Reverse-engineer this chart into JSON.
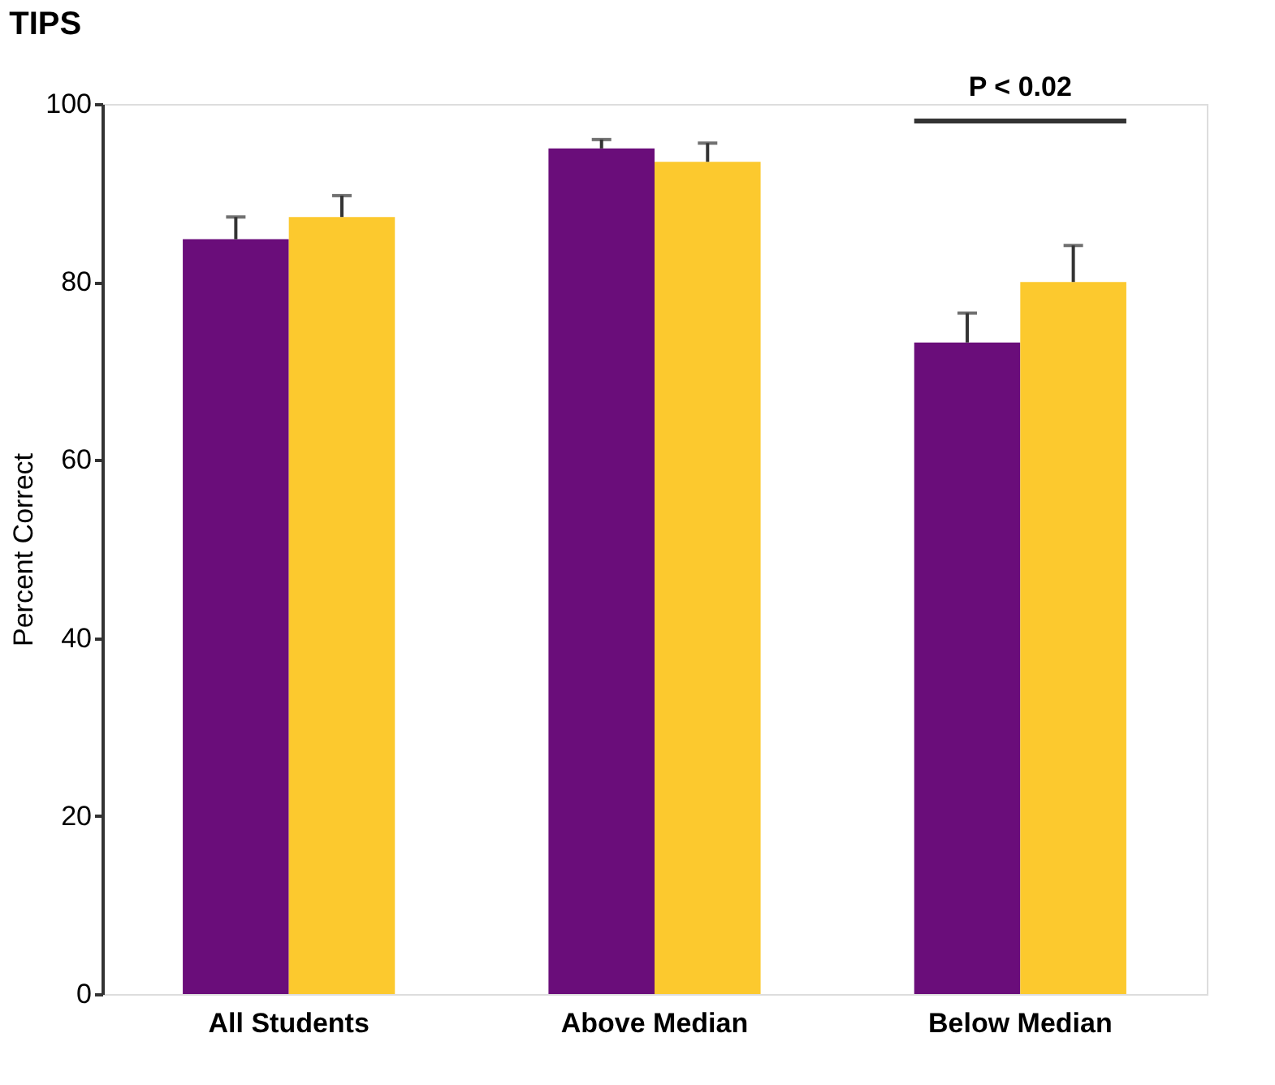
{
  "chart_data": {
    "type": "bar",
    "title": "TIPS",
    "ylabel": "Percent Correct",
    "categories": [
      "All Students",
      "Above Median",
      "Below Median"
    ],
    "series": [
      {
        "color": "#6a0d7a",
        "values": [
          84.8,
          95.0,
          73.2
        ],
        "errors": [
          [
            84.8,
            87.3
          ],
          [
            95.0,
            96.0
          ],
          [
            73.2,
            76.5
          ]
        ]
      },
      {
        "color": "#fcc92e",
        "values": [
          87.3,
          93.5,
          80.0
        ],
        "errors": [
          [
            87.3,
            89.7
          ],
          [
            93.5,
            95.6
          ],
          [
            80.0,
            84.1
          ]
        ]
      }
    ],
    "ylim": [
      0,
      100
    ],
    "yticks": [
      0,
      20,
      40,
      60,
      80,
      100
    ],
    "grid": false,
    "legend": false,
    "annotations": [
      "P < 0.02"
    ]
  }
}
